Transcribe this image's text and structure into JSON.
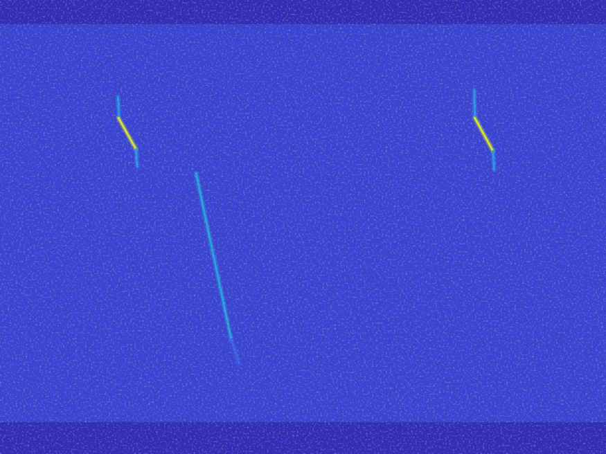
{
  "chart_data": {
    "type": "heatmap",
    "xlim": [
      0,
      100
    ],
    "ylim": [
      0,
      100
    ],
    "tick_labels": false,
    "grid": false,
    "clim": [
      0,
      1
    ],
    "regions": [
      {
        "x": [
          0,
          100
        ],
        "y": [
          0,
          100
        ],
        "value": 0.18
      },
      {
        "x": [
          0,
          100
        ],
        "y": [
          94.7,
          100
        ],
        "value": 0.08
      },
      {
        "x": [
          0,
          100
        ],
        "y": [
          0,
          7
        ],
        "value": 0.08
      }
    ],
    "streaks": [
      {
        "x": [
          19.4,
          19.6
        ],
        "y": [
          78.7,
          74.4
        ],
        "value": 0.45
      },
      {
        "x": [
          19.5,
          22.4
        ],
        "y": [
          74.1,
          67.2
        ],
        "value": 0.9
      },
      {
        "x": [
          22.4,
          22.6
        ],
        "y": [
          67.2,
          63.4
        ],
        "value": 0.45
      },
      {
        "x": [
          78.2,
          78.3
        ],
        "y": [
          80.2,
          74.4
        ],
        "value": 0.45
      },
      {
        "x": [
          78.3,
          81.3
        ],
        "y": [
          74.1,
          66.8
        ],
        "value": 0.9
      },
      {
        "x": [
          81.3,
          81.5
        ],
        "y": [
          66.8,
          62.7
        ],
        "value": 0.45
      },
      {
        "x": [
          32.3,
          38.1
        ],
        "y": [
          61.9,
          25.3
        ],
        "value": 0.5
      },
      {
        "x": [
          38.1,
          39.4
        ],
        "y": [
          25.3,
          20.0
        ],
        "value": 0.3
      }
    ]
  }
}
